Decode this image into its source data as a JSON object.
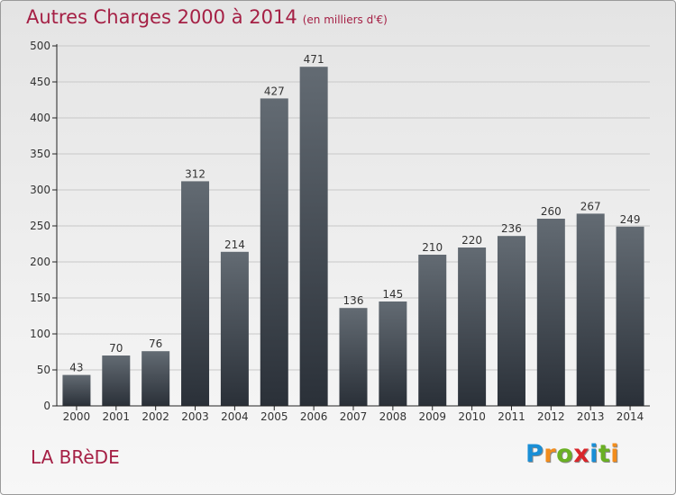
{
  "title": "Autres Charges 2000 à 2014",
  "subtitle": "(en milliers d'€)",
  "location": "LA BRèDE",
  "logo": {
    "text": "Proxiti",
    "colors": [
      "#1a8fd6",
      "#f28c1c",
      "#6ab023",
      "#d9262b",
      "#1a8fd6",
      "#6ab023",
      "#f28c1c"
    ]
  },
  "colors": {
    "accent": "#a52045",
    "bar_top": "#636b73",
    "bar_bottom": "#2a3038",
    "axis": "#222222",
    "grid": "#c8c8c8"
  },
  "chart_data": {
    "type": "bar",
    "categories": [
      "2000",
      "2001",
      "2002",
      "2003",
      "2004",
      "2005",
      "2006",
      "2007",
      "2008",
      "2009",
      "2010",
      "2011",
      "2012",
      "2013",
      "2014"
    ],
    "values": [
      43,
      70,
      76,
      312,
      214,
      427,
      471,
      136,
      145,
      210,
      220,
      236,
      260,
      267,
      249
    ],
    "ylim": [
      0,
      500
    ],
    "yticks": [
      0,
      50,
      100,
      150,
      200,
      250,
      300,
      350,
      400,
      450,
      500
    ],
    "xlabel": "",
    "ylabel": "",
    "grid": true
  }
}
